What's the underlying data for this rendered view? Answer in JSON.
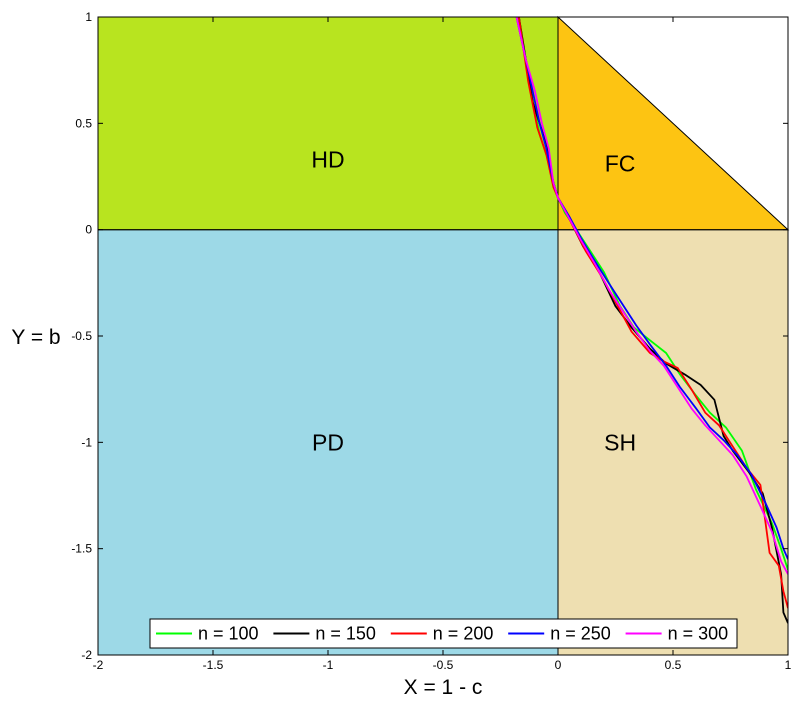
{
  "chart_data": {
    "type": "line",
    "title": "",
    "xlabel": "X = 1 - c",
    "ylabel": "Y = b",
    "xlim": [
      -2,
      1
    ],
    "ylim": [
      -2,
      1
    ],
    "x_ticks": [
      -2,
      -1.5,
      -1,
      -0.5,
      0,
      0.5,
      1
    ],
    "x_tick_labels": [
      "-2",
      "-1.5",
      "-1",
      "-0.5",
      "0",
      "0.5",
      "1"
    ],
    "y_ticks": [
      -2,
      -1.5,
      -1,
      -0.5,
      0,
      0.5,
      1
    ],
    "y_tick_labels": [
      "-2",
      "-1.5",
      "-1",
      "-0.5",
      "0",
      "0.5",
      "1"
    ],
    "grid": false,
    "legend_position": "bottom",
    "regions": [
      {
        "label": "HD",
        "color": "#b8e41f",
        "polygon": [
          [
            -2,
            0
          ],
          [
            0,
            0
          ],
          [
            0,
            1
          ],
          [
            -2,
            1
          ]
        ],
        "label_at": [
          -1.0,
          0.33
        ]
      },
      {
        "label": "FC",
        "color": "#fdc412",
        "polygon": [
          [
            0,
            0
          ],
          [
            1,
            0
          ],
          [
            0,
            1
          ]
        ],
        "label_at": [
          0.27,
          0.31
        ]
      },
      {
        "label": "PD",
        "color": "#9dd9e7",
        "polygon": [
          [
            -2,
            -2
          ],
          [
            0,
            -2
          ],
          [
            0,
            0
          ],
          [
            -2,
            0
          ]
        ],
        "label_at": [
          -1.0,
          -1.0
        ]
      },
      {
        "label": "SH",
        "color": "#eedfb1",
        "polygon": [
          [
            0,
            -2
          ],
          [
            1,
            -2
          ],
          [
            1,
            0
          ],
          [
            0,
            0
          ]
        ],
        "label_at": [
          0.27,
          -1.0
        ]
      }
    ],
    "series": [
      {
        "name": "n = 100",
        "color": "#00ff00",
        "x": [
          -0.17,
          -0.14,
          -0.11,
          -0.08,
          -0.05,
          -0.02,
          0.0,
          0.03,
          0.08,
          0.14,
          0.2,
          0.27,
          0.33,
          0.4,
          0.47,
          0.53,
          0.6,
          0.66,
          0.73,
          0.8,
          0.86,
          0.93,
          0.97,
          1.0
        ],
        "y": [
          1.0,
          0.8,
          0.6,
          0.45,
          0.35,
          0.22,
          0.15,
          0.08,
          0.0,
          -0.1,
          -0.2,
          -0.36,
          -0.46,
          -0.52,
          -0.58,
          -0.68,
          -0.78,
          -0.86,
          -0.93,
          -1.04,
          -1.22,
          -1.38,
          -1.5,
          -1.6
        ]
      },
      {
        "name": "n = 150",
        "color": "#000000",
        "x": [
          -0.17,
          -0.11,
          -0.05,
          -0.02,
          0.0,
          0.05,
          0.11,
          0.18,
          0.25,
          0.32,
          0.4,
          0.47,
          0.55,
          0.62,
          0.68,
          0.72,
          0.76,
          0.83,
          0.89,
          0.93,
          0.97,
          0.98,
          1.0
        ],
        "y": [
          1.0,
          0.6,
          0.4,
          0.22,
          0.15,
          0.05,
          -0.08,
          -0.2,
          -0.36,
          -0.46,
          -0.56,
          -0.63,
          -0.68,
          -0.73,
          -0.8,
          -0.97,
          -1.04,
          -1.14,
          -1.24,
          -1.4,
          -1.62,
          -1.8,
          -1.85
        ]
      },
      {
        "name": "n = 200",
        "color": "#ff0000",
        "x": [
          -0.17,
          -0.13,
          -0.09,
          -0.05,
          -0.02,
          0.0,
          0.05,
          0.12,
          0.19,
          0.26,
          0.32,
          0.4,
          0.46,
          0.52,
          0.58,
          0.64,
          0.7,
          0.76,
          0.82,
          0.88,
          0.92,
          0.96,
          0.98,
          1.0
        ],
        "y": [
          1.0,
          0.7,
          0.48,
          0.35,
          0.2,
          0.15,
          0.05,
          -0.1,
          -0.22,
          -0.36,
          -0.48,
          -0.58,
          -0.62,
          -0.65,
          -0.75,
          -0.86,
          -0.92,
          -1.02,
          -1.12,
          -1.2,
          -1.52,
          -1.58,
          -1.7,
          -1.78
        ]
      },
      {
        "name": "n = 250",
        "color": "#0000ff",
        "x": [
          -0.18,
          -0.15,
          -0.12,
          -0.08,
          -0.05,
          -0.02,
          0.0,
          0.05,
          0.1,
          0.15,
          0.22,
          0.28,
          0.34,
          0.4,
          0.47,
          0.53,
          0.6,
          0.66,
          0.72,
          0.78,
          0.84,
          0.9,
          0.95,
          0.98,
          1.0
        ],
        "y": [
          1.0,
          0.85,
          0.7,
          0.5,
          0.38,
          0.22,
          0.15,
          0.06,
          -0.04,
          -0.13,
          -0.25,
          -0.35,
          -0.45,
          -0.54,
          -0.64,
          -0.74,
          -0.84,
          -0.93,
          -0.99,
          -1.06,
          -1.15,
          -1.28,
          -1.4,
          -1.5,
          -1.55
        ]
      },
      {
        "name": "n = 300",
        "color": "#ff00ff",
        "x": [
          -0.18,
          -0.14,
          -0.1,
          -0.07,
          -0.04,
          -0.02,
          0.0,
          0.05,
          0.1,
          0.16,
          0.22,
          0.28,
          0.34,
          0.4,
          0.46,
          0.52,
          0.58,
          0.64,
          0.7,
          0.76,
          0.82,
          0.88,
          0.93,
          0.97,
          1.0
        ],
        "y": [
          1.0,
          0.8,
          0.65,
          0.5,
          0.38,
          0.22,
          0.15,
          0.05,
          -0.05,
          -0.16,
          -0.28,
          -0.38,
          -0.48,
          -0.57,
          -0.64,
          -0.74,
          -0.84,
          -0.92,
          -0.99,
          -1.06,
          -1.16,
          -1.3,
          -1.42,
          -1.56,
          -1.62
        ]
      }
    ]
  }
}
